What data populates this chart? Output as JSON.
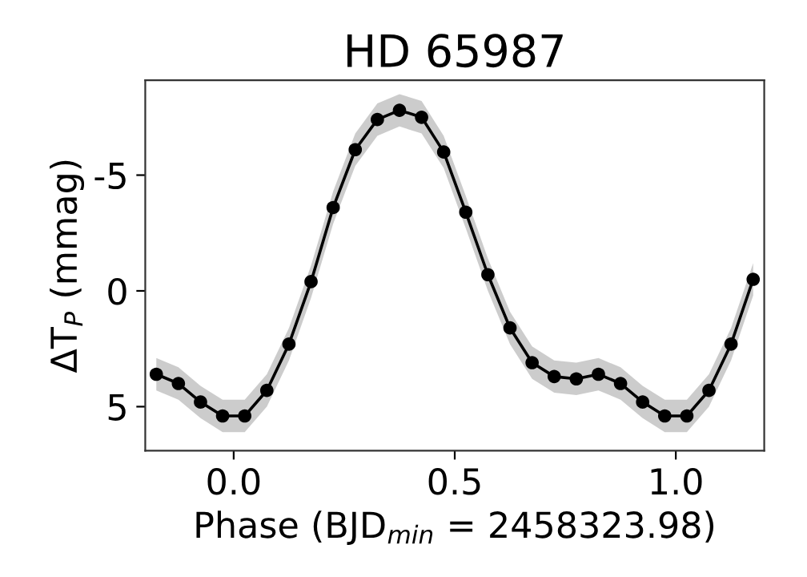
{
  "chart_data": {
    "type": "line",
    "title": "HD 65987",
    "xlabel": "Phase (BJD$_{min}$ = 2458323.98)",
    "ylabel": "ΔT$_{P}$ (mmag)",
    "x": [
      -0.175,
      -0.125,
      -0.075,
      -0.025,
      0.025,
      0.075,
      0.125,
      0.175,
      0.225,
      0.275,
      0.325,
      0.375,
      0.425,
      0.475,
      0.525,
      0.575,
      0.625,
      0.675,
      0.725,
      0.775,
      0.825,
      0.875,
      0.925,
      0.975,
      1.025,
      1.075,
      1.125,
      1.175
    ],
    "series": [
      {
        "color": "#000000",
        "marker": "circle",
        "line_style": "solid",
        "values": [
          3.6,
          4.0,
          4.8,
          5.4,
          5.4,
          4.3,
          2.3,
          -0.4,
          -3.6,
          -6.1,
          -7.4,
          -7.8,
          -7.5,
          -6.0,
          -3.4,
          -0.7,
          1.6,
          3.1,
          3.7,
          3.8,
          3.6,
          4.0,
          4.8,
          5.4,
          5.4,
          4.3,
          2.3,
          -0.5
        ],
        "lower": [
          2.9,
          3.3,
          4.1,
          4.7,
          4.7,
          3.6,
          1.6,
          -1.1,
          -4.3,
          -6.8,
          -8.1,
          -8.5,
          -8.2,
          -6.7,
          -4.1,
          -1.4,
          0.9,
          2.4,
          3.0,
          3.1,
          2.9,
          3.3,
          4.1,
          4.7,
          4.7,
          3.6,
          1.6,
          -1.2
        ],
        "upper": [
          4.3,
          4.7,
          5.5,
          6.1,
          6.1,
          5.0,
          3.0,
          0.3,
          -2.9,
          -5.4,
          -6.7,
          -7.1,
          -6.8,
          -5.3,
          -2.7,
          0.0,
          2.3,
          3.8,
          4.4,
          4.5,
          4.3,
          4.7,
          5.5,
          6.1,
          6.1,
          5.0,
          3.0,
          0.2
        ]
      }
    ],
    "xlim": [
      -0.2,
      1.2
    ],
    "xticks": [
      {
        "value": 0,
        "label": "0.0"
      },
      0.5,
      {
        "value": 1,
        "label": "1.0"
      }
    ],
    "ylim": [
      6.9,
      -9.1
    ],
    "yticks": [
      -5,
      0,
      5
    ],
    "grid": false
  }
}
